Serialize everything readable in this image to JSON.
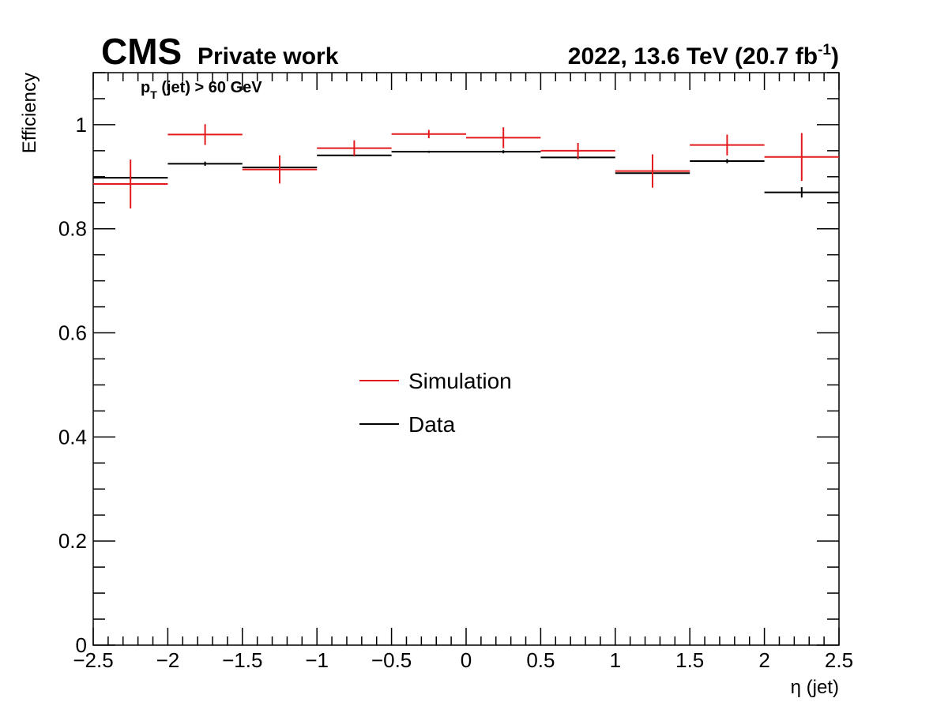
{
  "header": {
    "experiment": "CMS",
    "status": "Private work",
    "lumi_prefix": "2022, 13.6 TeV (20.7 fb",
    "lumi_exp": "-1",
    "lumi_suffix": ")"
  },
  "cut": {
    "p": "p",
    "sub": "T",
    "rest": " (jet) > 60 GeV"
  },
  "chart_data": {
    "type": "scatter",
    "xlabel": "η (jet)",
    "ylabel": "Efficiency",
    "xlim": [
      -2.5,
      2.5
    ],
    "ylim": [
      0,
      1.1
    ],
    "x_ticks": [
      "−2.5",
      "−2",
      "−1.5",
      "−1",
      "−0.5",
      "0",
      "0.5",
      "1",
      "1.5",
      "2",
      "2.5"
    ],
    "x_tick_values": [
      -2.5,
      -2,
      -1.5,
      -1,
      -0.5,
      0,
      0.5,
      1,
      1.5,
      2,
      2.5
    ],
    "y_ticks": [
      "0",
      "0.2",
      "0.4",
      "0.6",
      "0.8",
      "1"
    ],
    "y_tick_values": [
      0,
      0.2,
      0.4,
      0.6,
      0.8,
      1.0
    ],
    "bin_edges": [
      -2.5,
      -2,
      -1.5,
      -1,
      -0.5,
      0,
      0.5,
      1,
      1.5,
      2,
      2.5
    ],
    "grid": false,
    "legend_position": "center",
    "series": [
      {
        "name": "Simulation",
        "color": "#e31a1c",
        "x": [
          -2.25,
          -1.75,
          -1.25,
          -0.75,
          -0.25,
          0.25,
          0.75,
          1.25,
          1.75,
          2.25
        ],
        "values": [
          0.886,
          0.981,
          0.914,
          0.955,
          0.982,
          0.975,
          0.95,
          0.911,
          0.961,
          0.938
        ],
        "errors": [
          0.047,
          0.02,
          0.027,
          0.015,
          0.008,
          0.02,
          0.015,
          0.032,
          0.02,
          0.046
        ]
      },
      {
        "name": "Data",
        "color": "#000000",
        "x": [
          -2.25,
          -1.75,
          -1.25,
          -0.75,
          -0.25,
          0.25,
          0.75,
          1.25,
          1.75,
          2.25
        ],
        "values": [
          0.898,
          0.925,
          0.918,
          0.941,
          0.948,
          0.948,
          0.937,
          0.907,
          0.93,
          0.87
        ],
        "errors": [
          0.003,
          0.004,
          0.003,
          0.002,
          0.002,
          0.003,
          0.003,
          0.003,
          0.004,
          0.01
        ]
      }
    ]
  }
}
